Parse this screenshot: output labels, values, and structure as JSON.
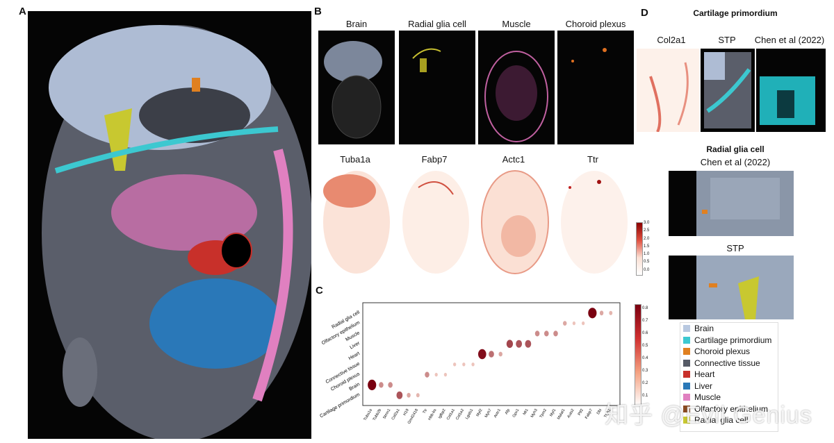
{
  "panels": {
    "A": "A",
    "B": "B",
    "C": "C",
    "D": "D"
  },
  "panel_b": {
    "top_titles": [
      "Brain",
      "Radial glia cell",
      "Muscle",
      "Choroid plexus"
    ],
    "gene_titles": [
      "Tuba1a",
      "Fabp7",
      "Actc1",
      "Ttr"
    ],
    "colorbar_ticks": [
      "3.0",
      "2.5",
      "2.0",
      "1.5",
      "1.0",
      "0.5",
      "0.0"
    ]
  },
  "panel_c": {
    "colorbar_ticks": [
      "0.8",
      "0.7",
      "0.6",
      "0.5",
      "0.4",
      "0.3",
      "0.2",
      "0.1"
    ]
  },
  "panel_d": {
    "title_cartilage": "Cartilage primordium",
    "col_titles": [
      "Col2a1",
      "STP",
      "Chen et al (2022)"
    ],
    "title_radial": "Radial glia cell",
    "subtitle_radial": "Chen et al (2022)",
    "title_stp": "STP"
  },
  "legend": [
    {
      "label": "Brain",
      "color": "#b8c8e0"
    },
    {
      "label": "Cartilage primordium",
      "color": "#3cc8d0"
    },
    {
      "label": "Choroid plexus",
      "color": "#e08020"
    },
    {
      "label": "Connective tissue",
      "color": "#555a66"
    },
    {
      "label": "Heart",
      "color": "#c8302a"
    },
    {
      "label": "Liver",
      "color": "#2a78b8"
    },
    {
      "label": "Muscle",
      "color": "#e080c0"
    },
    {
      "label": "Olfactory epithelium",
      "color": "#8a4a20"
    },
    {
      "label": "Radial glia cell",
      "color": "#c8c830"
    }
  ],
  "watermark": "知乎 @Evil Genius",
  "chart_data": {
    "type": "scatter",
    "title": "",
    "xlabel": "",
    "ylabel": "",
    "y_categories": [
      "Cartilage primordium",
      "Brain",
      "Choroid plexus",
      "Connective tissue",
      "Heart",
      "Liver",
      "Muscle",
      "Olfactory epithelium",
      "Radial glia cell"
    ],
    "x_categories": [
      "Tuba1a",
      "Tubb2b",
      "Stmn1",
      "Col2a1",
      "H19",
      "Gm42418",
      "Ttr",
      "Hbb-bs",
      "Igfbp2",
      "Col1a1",
      "Col1a2",
      "Lgals1",
      "Myl2",
      "Myh7",
      "Actc1",
      "Afp",
      "Gpx1",
      "Mt1",
      "Myh3",
      "Tpm2",
      "Myl1",
      "Malat1",
      "Auts2",
      "Ptf2",
      "Fabp7",
      "Dbi",
      "Ttyh1"
    ],
    "legend": "right colorbar",
    "colorbar_range": [
      0,
      0.8
    ],
    "points": [
      {
        "x": "Tuba1a",
        "y": "Brain",
        "value": 0.8
      },
      {
        "x": "Tubb2b",
        "y": "Brain",
        "value": 0.3
      },
      {
        "x": "Stmn1",
        "y": "Brain",
        "value": 0.3
      },
      {
        "x": "Col2a1",
        "y": "Cartilage primordium",
        "value": 0.5
      },
      {
        "x": "H19",
        "y": "Cartilage primordium",
        "value": 0.2
      },
      {
        "x": "Gm42418",
        "y": "Cartilage primordium",
        "value": 0.15
      },
      {
        "x": "Ttr",
        "y": "Choroid plexus",
        "value": 0.3
      },
      {
        "x": "Hbb-bs",
        "y": "Choroid plexus",
        "value": 0.1
      },
      {
        "x": "Igfbp2",
        "y": "Choroid plexus",
        "value": 0.1
      },
      {
        "x": "Col1a1",
        "y": "Connective tissue",
        "value": 0.1
      },
      {
        "x": "Col1a2",
        "y": "Connective tissue",
        "value": 0.1
      },
      {
        "x": "Lgals1",
        "y": "Connective tissue",
        "value": 0.1
      },
      {
        "x": "Myl2",
        "y": "Heart",
        "value": 0.75
      },
      {
        "x": "Myh7",
        "y": "Heart",
        "value": 0.4
      },
      {
        "x": "Actc1",
        "y": "Heart",
        "value": 0.2
      },
      {
        "x": "Afp",
        "y": "Liver",
        "value": 0.55
      },
      {
        "x": "Gpx1",
        "y": "Liver",
        "value": 0.5
      },
      {
        "x": "Mt1",
        "y": "Liver",
        "value": 0.5
      },
      {
        "x": "Myh3",
        "y": "Muscle",
        "value": 0.3
      },
      {
        "x": "Tpm2",
        "y": "Muscle",
        "value": 0.3
      },
      {
        "x": "Myl1",
        "y": "Muscle",
        "value": 0.3
      },
      {
        "x": "Malat1",
        "y": "Olfactory epithelium",
        "value": 0.2
      },
      {
        "x": "Auts2",
        "y": "Olfactory epithelium",
        "value": 0.1
      },
      {
        "x": "Ptf2",
        "y": "Olfactory epithelium",
        "value": 0.1
      },
      {
        "x": "Fabp7",
        "y": "Radial glia cell",
        "value": 0.8
      },
      {
        "x": "Dbi",
        "y": "Radial glia cell",
        "value": 0.2
      },
      {
        "x": "Ttyh1",
        "y": "Radial glia cell",
        "value": 0.15
      }
    ]
  }
}
